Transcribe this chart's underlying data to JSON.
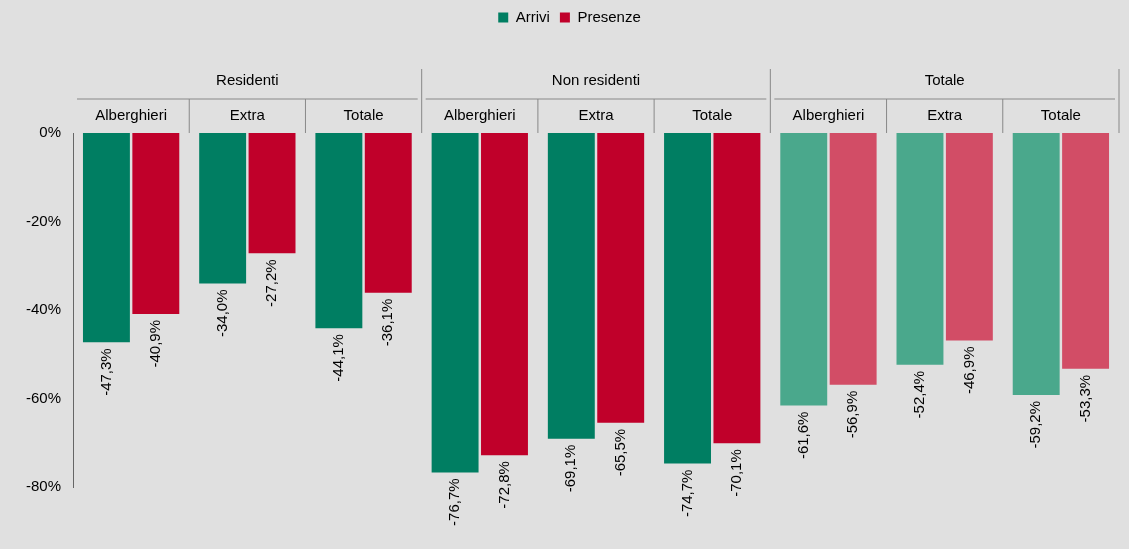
{
  "chart_data": {
    "type": "bar",
    "categories": [
      "Alberghieri",
      "Extra",
      "Totale",
      "Alberghieri",
      "Extra",
      "Totale",
      "Alberghieri",
      "Extra",
      "Totale"
    ],
    "annotations": [
      "Residenti",
      "Non residenti",
      "Totale"
    ],
    "series": [
      {
        "name": "Arrivi",
        "color": "#007e62",
        "colors": [
          "#007e62",
          "#007e62",
          "#007e62",
          "#007e62",
          "#007e62",
          "#007e62",
          "#4aa88c",
          "#4aa88c",
          "#4aa88c"
        ],
        "values": [
          -47.3,
          -34.0,
          -44.1,
          -76.7,
          -69.1,
          -74.7,
          -61.6,
          -52.4,
          -59.2
        ],
        "value_labels": [
          "-47,3%",
          "-34,0%",
          "-44,1%",
          "-76,7%",
          "-69,1%",
          "-74,7%",
          "-61,6%",
          "-52,4%",
          "-59,2%"
        ]
      },
      {
        "name": "Presenze",
        "color": "#c0002a",
        "colors": [
          "#c0002a",
          "#c0002a",
          "#c0002a",
          "#c0002a",
          "#c0002a",
          "#c0002a",
          "#d24d66",
          "#d24d66",
          "#d24d66"
        ],
        "values": [
          -40.9,
          -27.2,
          -36.1,
          -72.8,
          -65.5,
          -70.1,
          -56.9,
          -46.9,
          -53.3
        ],
        "value_labels": [
          "-40,9%",
          "-27,2%",
          "-36,1%",
          "-72,8%",
          "-65,5%",
          "-70,1%",
          "-56,9%",
          "-46,9%",
          "-53,3%"
        ]
      }
    ],
    "ylim": [
      -80,
      0
    ],
    "yticks": [
      {
        "value": 0,
        "label": "0%"
      },
      {
        "value": -20,
        "label": "-20%"
      },
      {
        "value": -40,
        "label": "-40%"
      },
      {
        "value": -60,
        "label": "-60%"
      },
      {
        "value": -80,
        "label": "-80%"
      }
    ],
    "grid": false,
    "legend": "top"
  }
}
